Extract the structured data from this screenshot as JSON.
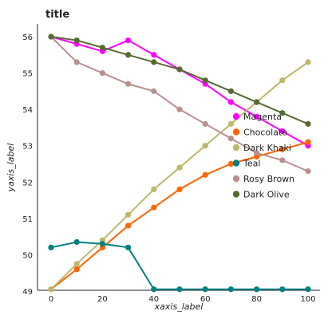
{
  "chart_data": {
    "type": "line",
    "title": "title",
    "xlabel": "xaxis_label",
    "ylabel": "yaxis_label",
    "xlim": [
      0,
      100
    ],
    "ylim": [
      49,
      56
    ],
    "x_ticks": [
      0,
      20,
      40,
      60,
      80,
      100
    ],
    "y_ticks": [
      49,
      50,
      51,
      52,
      53,
      54,
      55,
      56
    ],
    "grid": false,
    "legend_position": "right",
    "series": [
      {
        "name": "Magenta",
        "color": "#ff00ff",
        "points": [
          [
            0,
            56
          ],
          [
            10,
            55.8
          ],
          [
            20,
            55.6
          ],
          [
            30,
            55.9
          ],
          [
            40,
            55.5
          ],
          [
            50,
            55.1
          ],
          [
            60,
            54.7
          ],
          [
            70,
            54.2
          ],
          [
            80,
            53.8
          ],
          [
            90,
            53.4
          ],
          [
            100,
            53.0
          ]
        ]
      },
      {
        "name": "Chocolate",
        "color": "#ff6600",
        "points": [
          [
            0,
            49.05
          ],
          [
            10,
            49.6
          ],
          [
            20,
            50.2
          ],
          [
            30,
            50.8
          ],
          [
            40,
            51.3
          ],
          [
            50,
            51.8
          ],
          [
            60,
            52.2
          ],
          [
            70,
            52.5
          ],
          [
            80,
            52.7
          ],
          [
            90,
            52.9
          ],
          [
            100,
            53.1
          ]
        ]
      },
      {
        "name": "Dark Khaki",
        "color": "#bdb76b",
        "points": [
          [
            0,
            49.05
          ],
          [
            10,
            49.75
          ],
          [
            20,
            50.4
          ],
          [
            30,
            51.1
          ],
          [
            40,
            51.8
          ],
          [
            50,
            52.4
          ],
          [
            60,
            53.0
          ],
          [
            70,
            53.6
          ],
          [
            80,
            54.2
          ],
          [
            90,
            54.8
          ],
          [
            100,
            55.3
          ]
        ]
      },
      {
        "name": "Teal",
        "color": "#008080",
        "points": [
          [
            0,
            50.2
          ],
          [
            10,
            50.35
          ],
          [
            20,
            50.3
          ],
          [
            30,
            50.2
          ],
          [
            40,
            49.05
          ],
          [
            50,
            49.05
          ],
          [
            60,
            49.05
          ],
          [
            70,
            49.05
          ],
          [
            80,
            49.05
          ],
          [
            90,
            49.05
          ],
          [
            100,
            49.05
          ]
        ]
      },
      {
        "name": "Rosy Brown",
        "color": "#bc8f8f",
        "points": [
          [
            0,
            56
          ],
          [
            10,
            55.3
          ],
          [
            20,
            55.0
          ],
          [
            30,
            54.7
          ],
          [
            40,
            54.5
          ],
          [
            50,
            54.0
          ],
          [
            60,
            53.6
          ],
          [
            70,
            53.2
          ],
          [
            80,
            52.8
          ],
          [
            90,
            52.6
          ],
          [
            100,
            52.3
          ]
        ]
      },
      {
        "name": "Dark Olive",
        "color": "#556b2f",
        "points": [
          [
            0,
            56
          ],
          [
            10,
            55.9
          ],
          [
            20,
            55.7
          ],
          [
            30,
            55.5
          ],
          [
            40,
            55.3
          ],
          [
            50,
            55.1
          ],
          [
            60,
            54.8
          ],
          [
            70,
            54.5
          ],
          [
            80,
            54.2
          ],
          [
            90,
            53.9
          ],
          [
            100,
            53.6
          ]
        ]
      }
    ]
  }
}
